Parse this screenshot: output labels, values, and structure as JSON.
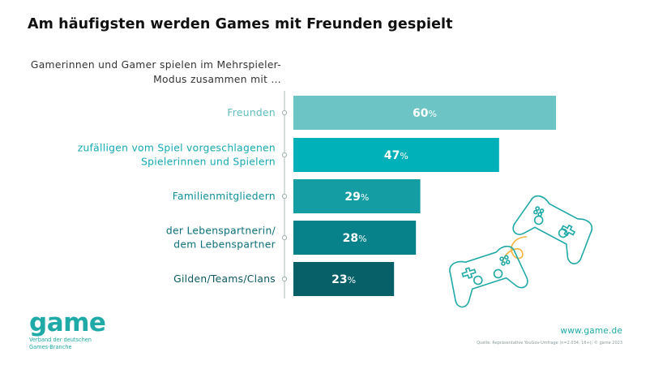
{
  "title": "Am häufigsten werden Games mit Freunden gespielt",
  "subtitle": "Gamerinnen und Gamer spielen im Mehrspieler-Modus zusammen mit …",
  "chart_data": {
    "type": "bar",
    "orientation": "horizontal",
    "categories": [
      [
        "Freunden"
      ],
      [
        "zufälligen vom Spiel vorgeschlagenen",
        "Spielerinnen und Spielern"
      ],
      [
        "Familienmitgliedern"
      ],
      [
        "der Lebenspartnerin/",
        "dem Lebenspartner"
      ],
      [
        "Gilden/Teams/Clans"
      ]
    ],
    "values": [
      60,
      47,
      29,
      28,
      23
    ],
    "value_suffix": "%",
    "colors": [
      "#6cc4c5",
      "#00b1b9",
      "#149ea4",
      "#07818a",
      "#075f67"
    ],
    "label_colors": [
      "#5fbcbd",
      "#14a9b2",
      "#0e8f96",
      "#0a6f78",
      "#0b5960"
    ],
    "xlim": [
      0,
      100
    ],
    "grid": false,
    "legend": "none"
  },
  "footer": {
    "logo": "game",
    "logo_sub_line1": "Verband der deutschen",
    "logo_sub_line2": "Games-Branche",
    "website": "www.game.de",
    "source": "Quelle: Repräsentative YouGov-Umfrage (n=2.034, 16+); © game 2023"
  },
  "illustration": {
    "icon": "game-controllers-icon",
    "accent": "#1fa9a7",
    "cable": "#f3b33d"
  }
}
